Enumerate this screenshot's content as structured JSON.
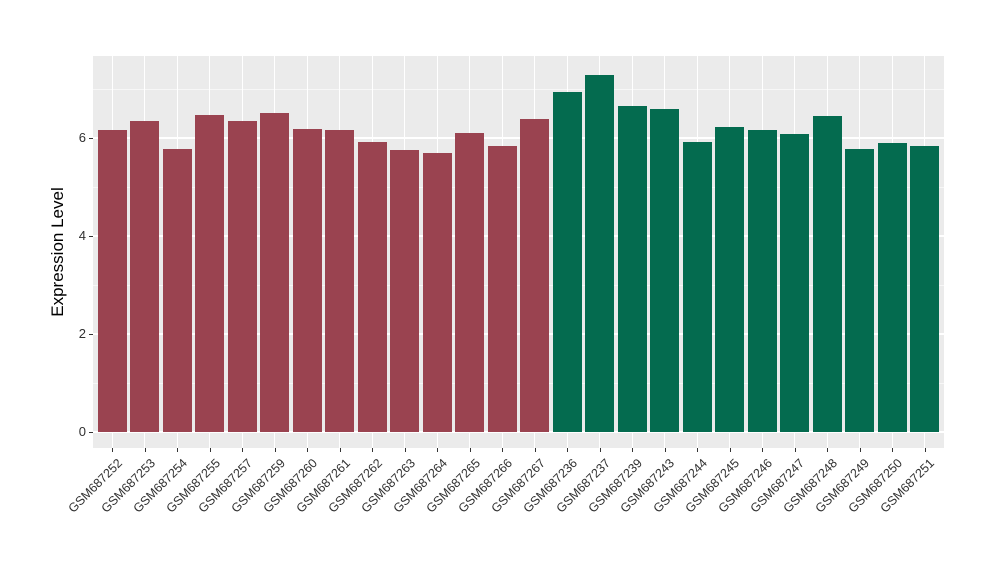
{
  "chart_data": {
    "type": "bar",
    "title": "",
    "xlabel": "",
    "ylabel": "Expression Level",
    "legend_position": "none",
    "grid": true,
    "panel_background": "#EBEBEB",
    "gridline_color": "#FFFFFF",
    "ylim": [
      -0.33,
      7.67
    ],
    "yticks": [
      0,
      2,
      4,
      6
    ],
    "yticks_minor": [
      1,
      3,
      5,
      7
    ],
    "categories": [
      "GSM687252",
      "GSM687253",
      "GSM687254",
      "GSM687255",
      "GSM687257",
      "GSM687259",
      "GSM687260",
      "GSM687261",
      "GSM687262",
      "GSM687263",
      "GSM687264",
      "GSM687265",
      "GSM687266",
      "GSM687267",
      "GSM687236",
      "GSM687237",
      "GSM687239",
      "GSM687243",
      "GSM687244",
      "GSM687245",
      "GSM687246",
      "GSM687247",
      "GSM687248",
      "GSM687249",
      "GSM687250",
      "GSM687251"
    ],
    "values": [
      6.15,
      6.34,
      5.77,
      6.46,
      6.34,
      6.5,
      6.17,
      6.16,
      5.92,
      5.75,
      5.7,
      6.1,
      5.83,
      6.38,
      6.93,
      7.28,
      6.64,
      6.58,
      5.91,
      6.23,
      6.16,
      6.07,
      6.44,
      5.78,
      5.9,
      5.84
    ],
    "groups": [
      "maroon",
      "maroon",
      "maroon",
      "maroon",
      "maroon",
      "maroon",
      "maroon",
      "maroon",
      "maroon",
      "maroon",
      "maroon",
      "maroon",
      "maroon",
      "maroon",
      "green",
      "green",
      "green",
      "green",
      "green",
      "green",
      "green",
      "green",
      "green",
      "green",
      "green",
      "green"
    ],
    "group_colors": {
      "maroon": "#9A4350",
      "green": "#046B4F"
    }
  }
}
